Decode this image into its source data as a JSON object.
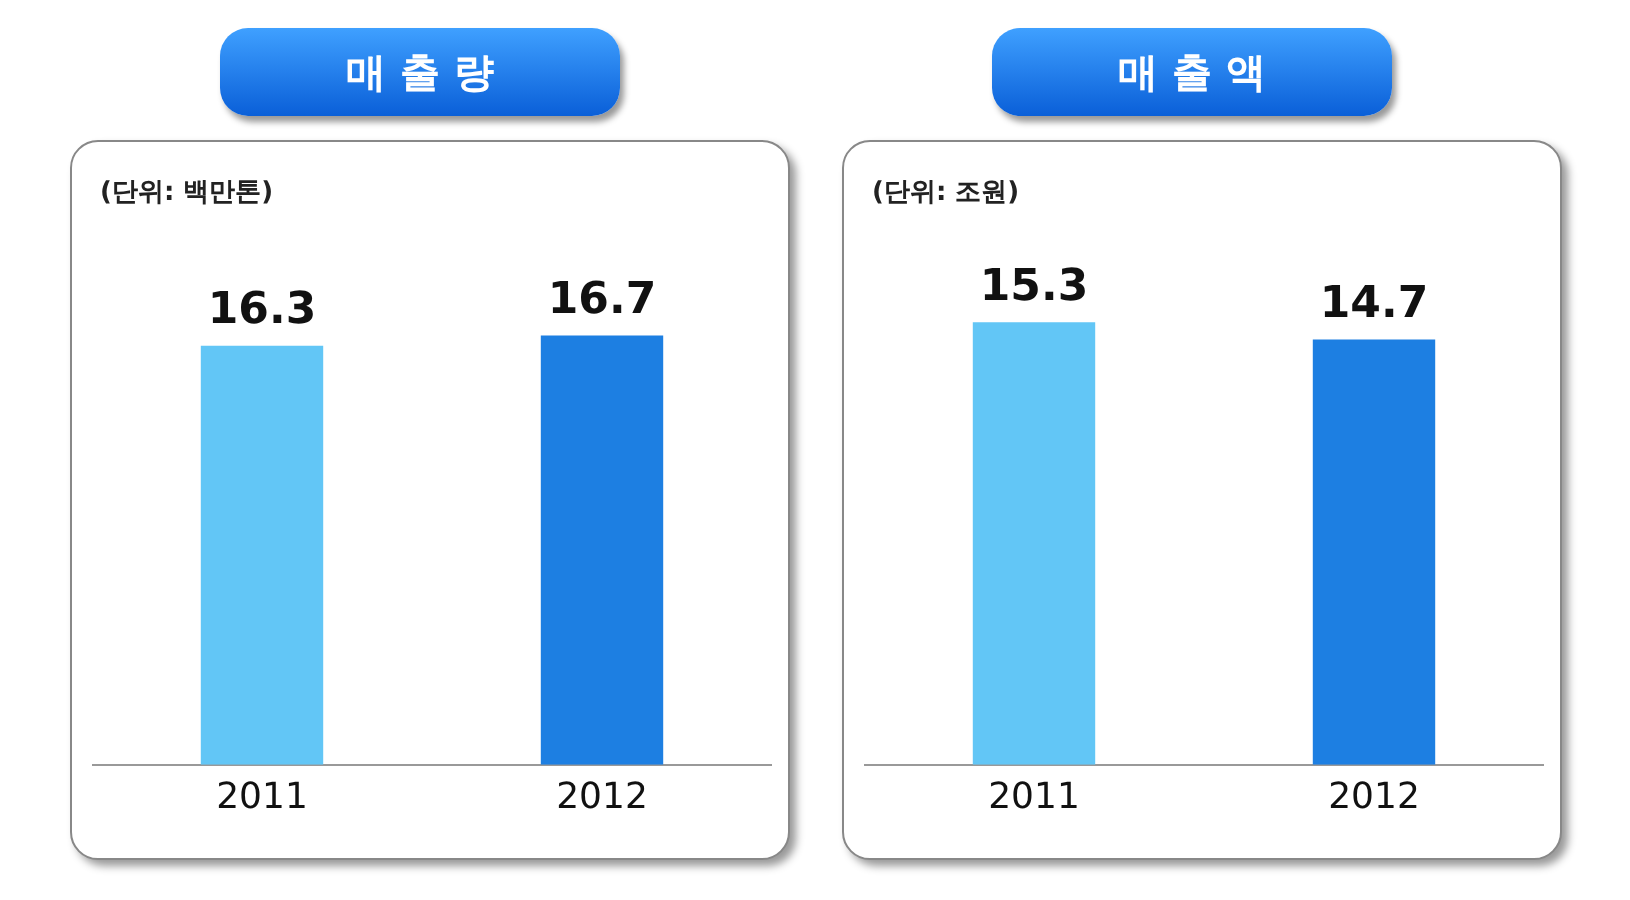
{
  "chart_data": [
    {
      "type": "bar",
      "title": "매 출 량",
      "subtitle": "(단위: 백만톤)",
      "categories": [
        "2011",
        "2012"
      ],
      "values": [
        16.3,
        16.7
      ],
      "colors": [
        "#62c6f6",
        "#1d7fe2"
      ],
      "data_labels": true,
      "grid": false,
      "legend": false,
      "tick_labels": "x"
    },
    {
      "type": "bar",
      "title": "매 출 액",
      "subtitle": "(단위: 조원)",
      "categories": [
        "2011",
        "2012"
      ],
      "values": [
        15.3,
        14.7
      ],
      "colors": [
        "#62c6f6",
        "#1d7fe2"
      ],
      "data_labels": true,
      "grid": false,
      "legend": false,
      "tick_labels": "x"
    }
  ]
}
